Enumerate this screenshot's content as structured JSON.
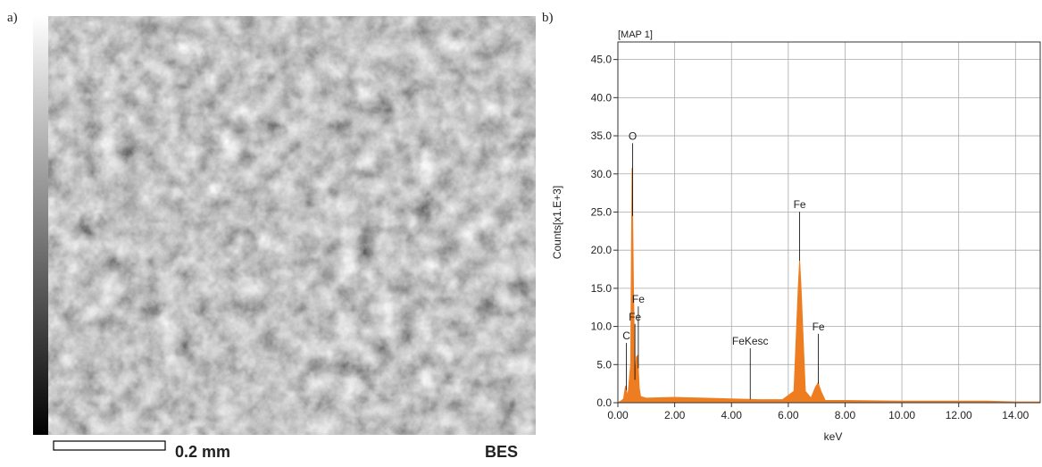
{
  "image_panel": {
    "label": "a)",
    "scale_bar": "0.2 mm",
    "mode": "BES"
  },
  "chart_data": {
    "type": "area",
    "panel_label": "b)",
    "title": "[MAP 1]",
    "xlabel": "keV",
    "ylabel": "Counts[x1.E+3]",
    "color": "#ee7d22",
    "grid": true,
    "x": [
      0,
      0.1,
      0.2,
      0.27,
      0.35,
      0.45,
      0.5,
      0.55,
      0.6,
      0.65,
      0.7,
      0.75,
      0.8,
      1.0,
      2.0,
      3.0,
      4.0,
      5.0,
      5.8,
      6.2,
      6.35,
      6.4,
      6.45,
      6.6,
      6.8,
      6.95,
      7.05,
      7.15,
      7.3,
      8.0,
      10.0,
      12.0,
      13.0,
      14.0,
      14.87
    ],
    "values": [
      0,
      0.2,
      0.5,
      2.2,
      0.8,
      5,
      30.8,
      15,
      3,
      6,
      6.2,
      2,
      0.8,
      0.6,
      0.7,
      0.6,
      0.5,
      0.4,
      0.4,
      1.5,
      15,
      18.6,
      15,
      1.5,
      0.6,
      2,
      2.6,
      1.5,
      0.3,
      0.3,
      0.2,
      0.2,
      0.2,
      0.1,
      0.1
    ],
    "xlim": [
      0,
      14.87
    ],
    "ylim": [
      0,
      47.3
    ],
    "xticks": [
      {
        "value": 0,
        "label": "0.00"
      },
      {
        "value": 2,
        "label": "2.00"
      },
      {
        "value": 4,
        "label": "4.00"
      },
      {
        "value": 6,
        "label": "6.00"
      },
      {
        "value": 8,
        "label": "8.00"
      },
      {
        "value": 10,
        "label": "10.00"
      },
      {
        "value": 12,
        "label": "12.00"
      },
      {
        "value": 14,
        "label": "14.00"
      }
    ],
    "yticks": [
      {
        "value": 0,
        "label": "0.0"
      },
      {
        "value": 5,
        "label": "5.0"
      },
      {
        "value": 10,
        "label": "10.0"
      },
      {
        "value": 15,
        "label": "15.0"
      },
      {
        "value": 20,
        "label": "20.0"
      },
      {
        "value": 25,
        "label": "25.0"
      },
      {
        "value": 30,
        "label": "30.0"
      },
      {
        "value": 35,
        "label": "35.0"
      },
      {
        "value": 40,
        "label": "40.0"
      },
      {
        "value": 45,
        "label": "45.0"
      }
    ],
    "annotations": [
      {
        "text": "O",
        "x": 0.52,
        "y": 34.5
      },
      {
        "text": "Fe",
        "x": 0.72,
        "y": 13.1
      },
      {
        "text": "Fe",
        "x": 0.6,
        "y": 10.8
      },
      {
        "text": "C",
        "x": 0.3,
        "y": 8.3
      },
      {
        "text": "FeKesc",
        "x": 4.66,
        "y": 7.6
      },
      {
        "text": "Fe",
        "x": 6.4,
        "y": 25.5
      },
      {
        "text": "Fe",
        "x": 7.06,
        "y": 9.5
      }
    ]
  }
}
